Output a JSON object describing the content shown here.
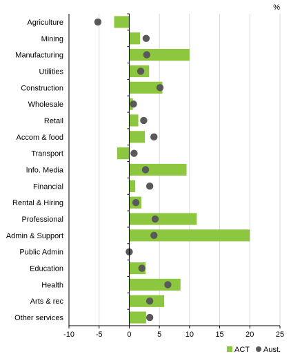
{
  "chart_data": {
    "type": "bar",
    "unit_label": "%",
    "categories": [
      "Agriculture",
      "Mining",
      "Manufacturing",
      "Utilities",
      "Construction",
      "Wholesale",
      "Retail",
      "Accom & food",
      "Transport",
      "Info. Media",
      "Financial",
      "Rental & Hiring",
      "Professional",
      "Admin & Support",
      "Public Admin",
      "Education",
      "Health",
      "Arts & rec",
      "Other services"
    ],
    "series": [
      {
        "name": "ACT",
        "style": "bar",
        "color": "#8dc63f",
        "values": [
          -2.5,
          1.8,
          10.0,
          3.3,
          5.5,
          0.6,
          1.5,
          2.6,
          -2.0,
          9.5,
          1.0,
          2.0,
          11.2,
          20.0,
          0.0,
          2.7,
          8.5,
          5.8,
          2.8
        ]
      },
      {
        "name": "Aust.",
        "style": "dot",
        "color": "#595959",
        "values": [
          -5.2,
          2.8,
          2.9,
          1.9,
          5.1,
          0.7,
          2.4,
          4.1,
          0.8,
          2.7,
          3.4,
          1.1,
          4.3,
          4.1,
          0.0,
          2.1,
          6.4,
          3.4,
          3.4
        ]
      }
    ],
    "xlim": [
      -10,
      25
    ],
    "xticks": [
      "-10",
      "-5",
      "0",
      "5",
      "10",
      "15",
      "20",
      "25"
    ],
    "orientation": "horizontal",
    "grid": "vertical",
    "legend_position": "bottom-right"
  }
}
